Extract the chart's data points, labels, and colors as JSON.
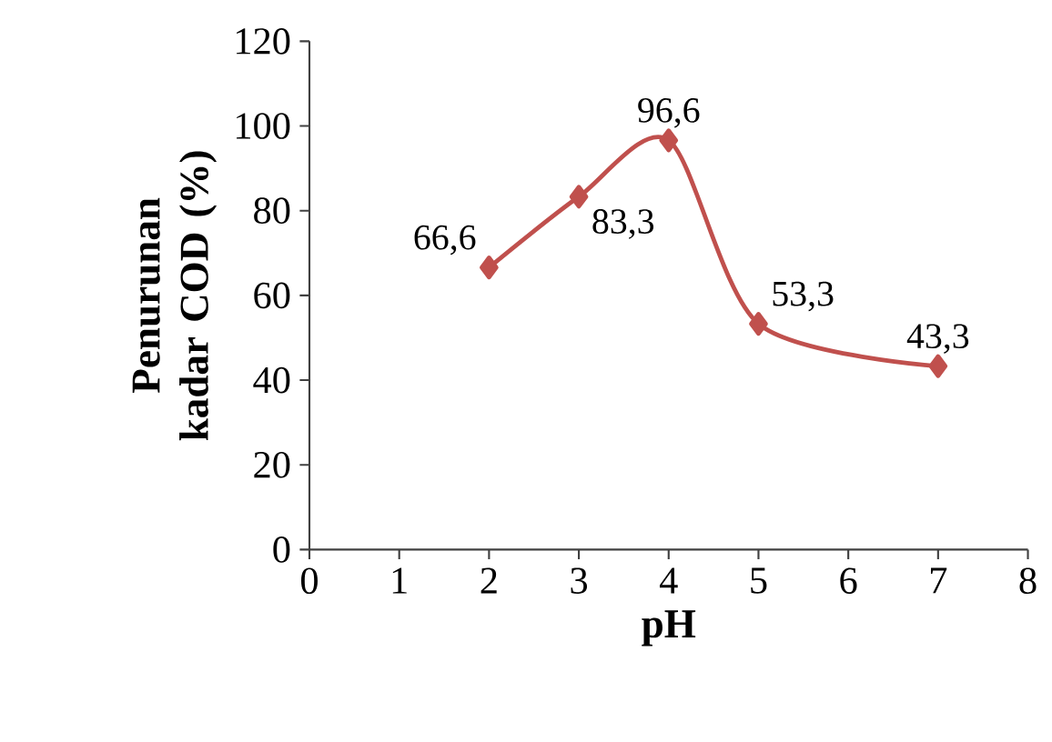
{
  "chart_data": {
    "type": "line",
    "xlabel": "pH",
    "ylabel": "Penurunan kadar COD (%)",
    "x": [
      2,
      3,
      4,
      5,
      7
    ],
    "series": [
      {
        "color": "#c0504d",
        "values": [
          66.6,
          83.3,
          96.6,
          53.3,
          43.3
        ],
        "value_labels": [
          "66,6",
          "83,3",
          "96,6",
          "53,3",
          "43,3"
        ]
      }
    ],
    "xlim": [
      0,
      8
    ],
    "xticks": [
      0,
      1,
      2,
      3,
      4,
      5,
      6,
      7,
      8
    ],
    "ylim": [
      0,
      120
    ],
    "yticks": [
      0,
      20,
      40,
      60,
      80,
      100,
      120
    ],
    "marker": "diamond",
    "grid": false,
    "line_style": "solid"
  }
}
